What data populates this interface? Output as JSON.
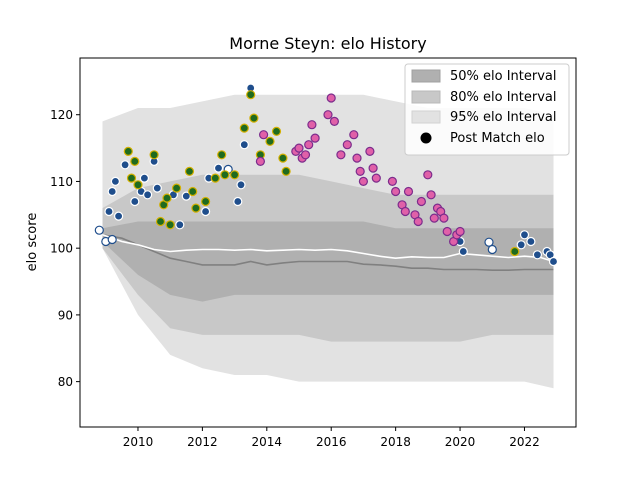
{
  "chart_data": {
    "type": "scatter",
    "title": "Morne Steyn: elo History",
    "xlabel": "",
    "ylabel": "elo score",
    "xlim": [
      2008.2,
      2023.6
    ],
    "ylim": [
      73.2,
      128.5
    ],
    "grid": false,
    "legend_position": "top-right",
    "x_ticks": [
      2010,
      2012,
      2014,
      2016,
      2018,
      2020,
      2022
    ],
    "y_ticks": [
      80,
      90,
      100,
      110,
      120
    ],
    "x_tick_labels": [
      "2010",
      "2012",
      "2014",
      "2016",
      "2018",
      "2020",
      "2022"
    ],
    "y_tick_labels": [
      "80",
      "90",
      "100",
      "110",
      "120"
    ],
    "legend": [
      {
        "label": "50% elo Interval",
        "color": "#b0b0b0"
      },
      {
        "label": "80% elo Interval",
        "color": "#c8c8c8"
      },
      {
        "label": "95% elo Interval",
        "color": "#e2e2e2"
      },
      {
        "label": "Post Match elo",
        "color": "#000000"
      }
    ],
    "colors": {
      "band_50": "#b0b0b0",
      "band_80": "#c8c8c8",
      "band_95": "#e2e2e2",
      "median_line": "#808080",
      "mean_line": "#ffffff",
      "blue_team": "#1f4e8c",
      "green_team": "#1f6b1f",
      "gold_edge": "#d4b000",
      "pink_team": "#e060a8",
      "purple_edge": "#7b2c8c"
    },
    "bands": {
      "x": [
        2008.9,
        2010,
        2011,
        2012,
        2013,
        2014,
        2015,
        2016,
        2017,
        2018,
        2019,
        2020,
        2021,
        2022,
        2022.9
      ],
      "p50_low": [
        101,
        96,
        93,
        92,
        93,
        93,
        93,
        93,
        93,
        93,
        93,
        93,
        93,
        93,
        93
      ],
      "p50_high": [
        103,
        104,
        104,
        104,
        104,
        104,
        104,
        104,
        104,
        103,
        103,
        103,
        103,
        103,
        103
      ],
      "p80_low": [
        100,
        93,
        88,
        87,
        87,
        87,
        87,
        86,
        86,
        86,
        86,
        86,
        87,
        87,
        87
      ],
      "p80_high": [
        106,
        109,
        110,
        111,
        111,
        111,
        111,
        110,
        109,
        108,
        108,
        108,
        108,
        108,
        108
      ],
      "p95_low": [
        100,
        90,
        84,
        82,
        81,
        81,
        80,
        80,
        80,
        80,
        80,
        80,
        80,
        80,
        79
      ],
      "p95_high": [
        119,
        121,
        121,
        122,
        123,
        123,
        123,
        123,
        123,
        122,
        121,
        121,
        121,
        121,
        120
      ]
    },
    "lines": {
      "median": {
        "x": [
          2008.9,
          2009.5,
          2010,
          2010.5,
          2011,
          2011.5,
          2012,
          2012.5,
          2013,
          2013.5,
          2014,
          2014.5,
          2015,
          2015.5,
          2016,
          2016.5,
          2017,
          2017.5,
          2018,
          2018.5,
          2019,
          2019.5,
          2020,
          2020.5,
          2021,
          2021.5,
          2022,
          2022.5,
          2022.9
        ],
        "y": [
          102,
          101.5,
          100.5,
          99.5,
          98.5,
          98,
          97.5,
          97.5,
          97.5,
          98,
          97.5,
          97.8,
          98,
          98,
          98,
          98,
          97.6,
          97.5,
          97.3,
          97,
          97,
          96.8,
          96.8,
          96.8,
          96.7,
          96.7,
          96.8,
          96.8,
          96.8
        ]
      },
      "mean": {
        "x": [
          2008.9,
          2009.5,
          2010,
          2010.5,
          2011,
          2011.5,
          2012,
          2012.5,
          2013,
          2013.5,
          2014,
          2014.5,
          2015,
          2015.5,
          2016,
          2016.5,
          2017,
          2017.5,
          2018,
          2018.5,
          2019,
          2019.5,
          2020,
          2020.5,
          2021,
          2021.5,
          2022,
          2022.5,
          2022.9
        ],
        "y": [
          102,
          101,
          100.5,
          99.8,
          99.5,
          99.7,
          99.8,
          99.8,
          99.7,
          99.8,
          99.6,
          99.7,
          99.8,
          99.7,
          99.8,
          99.6,
          99.2,
          98.8,
          98.5,
          98.7,
          98.6,
          98.6,
          99.2,
          99,
          98.8,
          98.6,
          98.8,
          98.6,
          98
        ]
      }
    },
    "series": [
      {
        "group": "white",
        "x": [
          2008.8,
          2009.0,
          2009.2,
          2012.8,
          2020.9,
          2021.0
        ],
        "y": [
          102.7,
          101.0,
          101.3,
          111.8,
          100.9,
          99.8
        ]
      },
      {
        "group": "blue",
        "x": [
          2009.1,
          2009.2,
          2009.3,
          2009.4,
          2009.6,
          2009.9,
          2010.1,
          2010.2,
          2010.3,
          2010.5,
          2010.6,
          2011.1,
          2011.3,
          2011.5,
          2012.1,
          2012.2,
          2012.5,
          2013.1,
          2013.2,
          2013.3,
          2013.5,
          2020.0,
          2020.1,
          2021.9,
          2022.0,
          2022.2,
          2022.4,
          2022.7,
          2022.8,
          2022.9
        ],
        "y": [
          105.5,
          108.5,
          110.0,
          104.8,
          112.5,
          107.0,
          108.5,
          110.5,
          108.0,
          113.0,
          109.0,
          108.0,
          103.5,
          107.8,
          105.5,
          110.5,
          112.0,
          107.0,
          109.5,
          115.5,
          124.0,
          101.0,
          99.5,
          100.5,
          102.0,
          101.0,
          99.0,
          99.5,
          99.0,
          98.0
        ]
      },
      {
        "group": "green",
        "x": [
          2009.7,
          2009.8,
          2009.9,
          2010.0,
          2010.5,
          2010.7,
          2010.8,
          2010.9,
          2011.0,
          2011.2,
          2011.6,
          2011.7,
          2011.8,
          2012.1,
          2012.4,
          2012.6,
          2012.7,
          2013.0,
          2013.3,
          2013.5,
          2013.6,
          2013.8,
          2014.1,
          2014.3,
          2014.5,
          2014.6,
          2021.7
        ],
        "y": [
          114.5,
          110.5,
          113.0,
          109.5,
          114.0,
          104.0,
          106.5,
          107.5,
          103.5,
          109.0,
          111.5,
          108.5,
          106.0,
          107.0,
          110.5,
          114.0,
          111.0,
          111.0,
          118.0,
          123.0,
          119.5,
          114.0,
          116.0,
          117.5,
          113.5,
          111.5,
          99.5
        ]
      },
      {
        "group": "pink",
        "x": [
          2013.8,
          2013.9,
          2014.9,
          2015.0,
          2015.1,
          2015.2,
          2015.3,
          2015.4,
          2015.5,
          2015.9,
          2016.0,
          2016.1,
          2016.3,
          2016.5,
          2016.7,
          2016.8,
          2016.9,
          2017.0,
          2017.2,
          2017.3,
          2017.4,
          2017.9,
          2018.0,
          2018.2,
          2018.3,
          2018.4,
          2018.6,
          2018.7,
          2018.8,
          2019.0,
          2019.1,
          2019.2,
          2019.3,
          2019.4,
          2019.5,
          2019.6,
          2019.8,
          2019.9,
          2020.0
        ],
        "y": [
          113.0,
          117.0,
          114.5,
          115.0,
          113.5,
          114.0,
          115.5,
          118.5,
          116.5,
          120.0,
          122.5,
          119.0,
          114.0,
          115.5,
          117.0,
          113.5,
          111.5,
          110.0,
          114.5,
          112.0,
          110.5,
          110.0,
          108.5,
          106.5,
          105.5,
          108.5,
          105.0,
          104.0,
          107.0,
          111.0,
          108.0,
          104.5,
          106.0,
          105.5,
          104.5,
          102.5,
          101.0,
          102.0,
          102.5
        ]
      }
    ]
  }
}
